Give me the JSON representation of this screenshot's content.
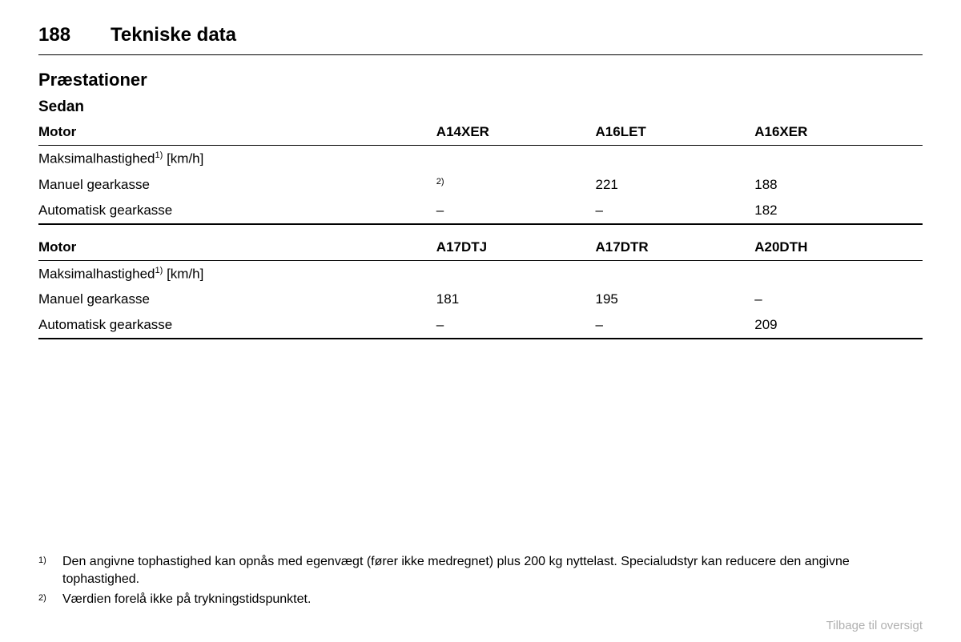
{
  "page_number": "188",
  "chapter_title": "Tekniske data",
  "section_title": "Præstationer",
  "subsection_title": "Sedan",
  "table1": {
    "header_label": "Motor",
    "col1": "A14XER",
    "col2": "A16LET",
    "col3": "A16XER",
    "max_speed_label_prefix": "Maksimalhastighed",
    "max_speed_sup": "1)",
    "max_speed_label_suffix": " [km/h]",
    "row_manual_label": "Manuel gearkasse",
    "row_manual_v1_sup": "2)",
    "row_manual_v2": "221",
    "row_manual_v3": "188",
    "row_auto_label": "Automatisk gearkasse",
    "row_auto_v1": "–",
    "row_auto_v2": "–",
    "row_auto_v3": "182"
  },
  "table2": {
    "header_label": "Motor",
    "col1": "A17DTJ",
    "col2": "A17DTR",
    "col3": "A20DTH",
    "max_speed_label_prefix": "Maksimalhastighed",
    "max_speed_sup": "1)",
    "max_speed_label_suffix": " [km/h]",
    "row_manual_label": "Manuel gearkasse",
    "row_manual_v1": "181",
    "row_manual_v2": "195",
    "row_manual_v3": "–",
    "row_auto_label": "Automatisk gearkasse",
    "row_auto_v1": "–",
    "row_auto_v2": "–",
    "row_auto_v3": "209"
  },
  "footnotes": {
    "f1_marker": "1)",
    "f1_text": "Den angivne tophastighed kan opnås med egenvægt (fører ikke medregnet) plus 200 kg nyttelast. Specialudstyr kan reducere den angivne tophastighed.",
    "f2_marker": "2)",
    "f2_text": "Værdien forelå ikke på trykningstidspunktet."
  },
  "footer_link": "Tilbage til oversigt"
}
